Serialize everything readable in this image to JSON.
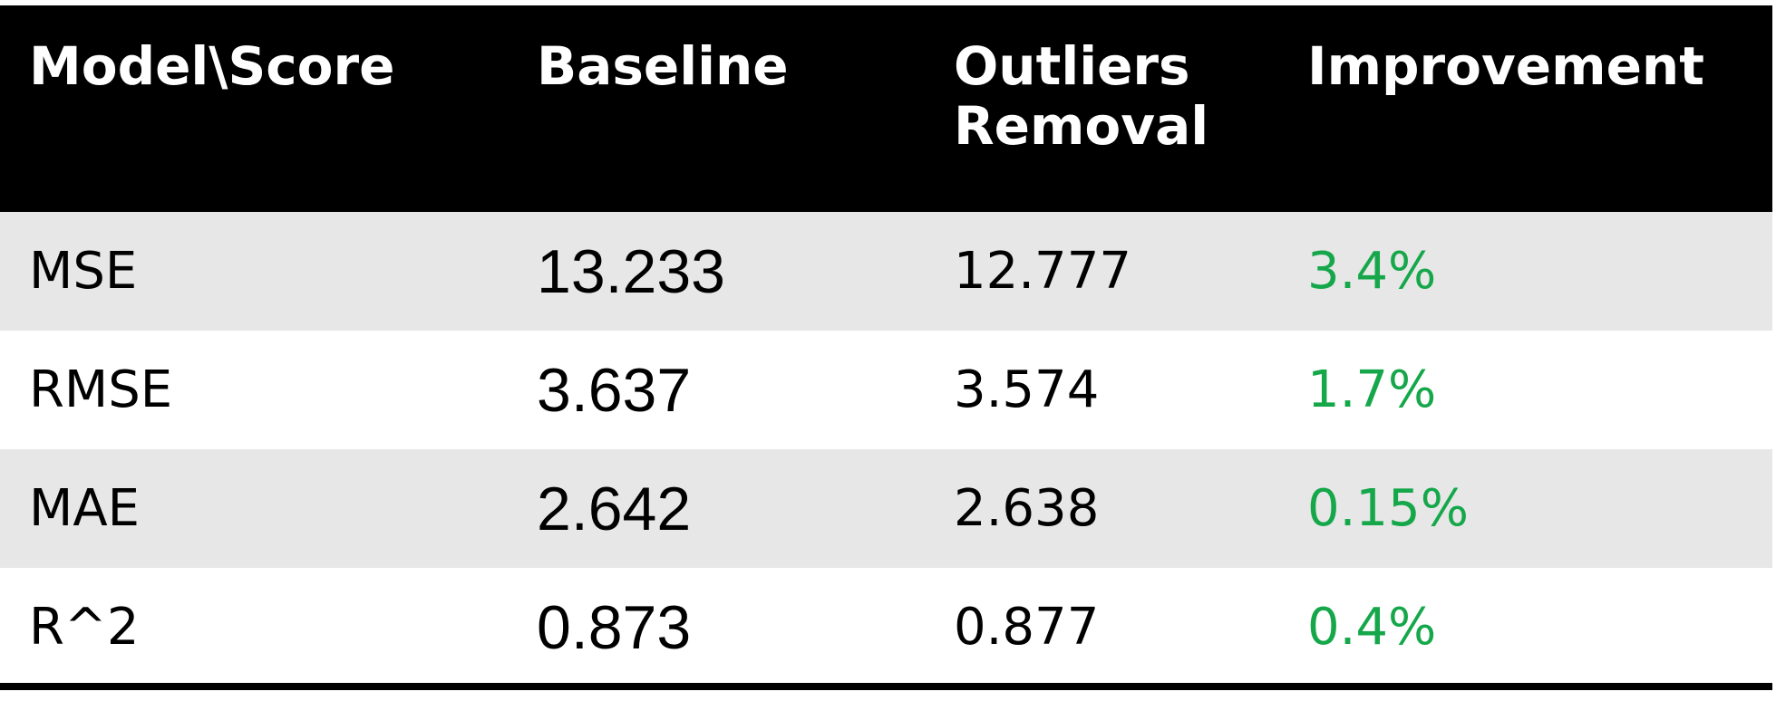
{
  "table": {
    "headers": [
      {
        "key": "model_score",
        "line1": "Model\\Score",
        "line2": ""
      },
      {
        "key": "baseline",
        "line1": "Baseline",
        "line2": ""
      },
      {
        "key": "outliers_removal",
        "line1": "Outliers",
        "line2": "Removal"
      },
      {
        "key": "improvement",
        "line1": "Improvement",
        "line2": ""
      }
    ],
    "rows": [
      {
        "metric": "MSE",
        "baseline": "13.233",
        "outliers_removal": "12.777",
        "improvement": "3.4%"
      },
      {
        "metric": "RMSE",
        "baseline": "3.637",
        "outliers_removal": "3.574",
        "improvement": "1.7%"
      },
      {
        "metric": "MAE",
        "baseline": "2.642",
        "outliers_removal": "2.638",
        "improvement": "0.15%"
      },
      {
        "metric": "R^2",
        "baseline": "0.873",
        "outliers_removal": "0.877",
        "improvement": "0.4%"
      }
    ]
  },
  "colors": {
    "header_background": "#000000",
    "header_text": "#ffffff",
    "shaded_row": "#e7e7e7",
    "improvement_text": "#15a74a"
  }
}
